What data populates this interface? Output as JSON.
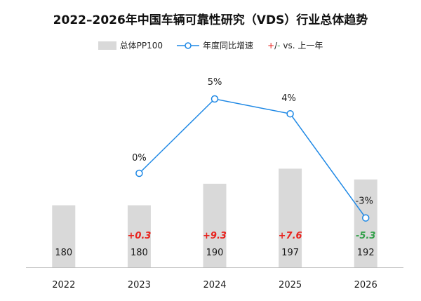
{
  "title": "2022–2026年中国车辆可靠性研究（VDS）行业总体趋势",
  "legend": {
    "bar_label": "总体PP100",
    "line_label": "年度同比增速",
    "delta_plus": "+",
    "delta_slash": "/",
    "delta_minus": "-",
    "delta_label": "vs. 上一年"
  },
  "colors": {
    "bar": "#d9d9d9",
    "line": "#1e88e5",
    "positive": "#e8231e",
    "negative": "#33a04a"
  },
  "chart_data": {
    "type": "bar",
    "title": "2022–2026年中国车辆可靠性研究（VDS）行业总体趋势",
    "categories": [
      "2022",
      "2023",
      "2024",
      "2025",
      "2026"
    ],
    "series": [
      {
        "name": "总体PP100",
        "type": "bar",
        "values": [
          180,
          180,
          190,
          197,
          192
        ]
      },
      {
        "name": "年度同比增速",
        "type": "line",
        "values": [
          null,
          0,
          5,
          4,
          -3
        ],
        "labels": [
          "",
          "0%",
          "5%",
          "4%",
          "-3%"
        ]
      }
    ],
    "deltas": [
      "",
      "+0.3",
      "+9.3",
      "+7.6",
      "-5.3"
    ],
    "bar_labels": [
      "180",
      "180",
      "190",
      "197",
      "192"
    ]
  }
}
